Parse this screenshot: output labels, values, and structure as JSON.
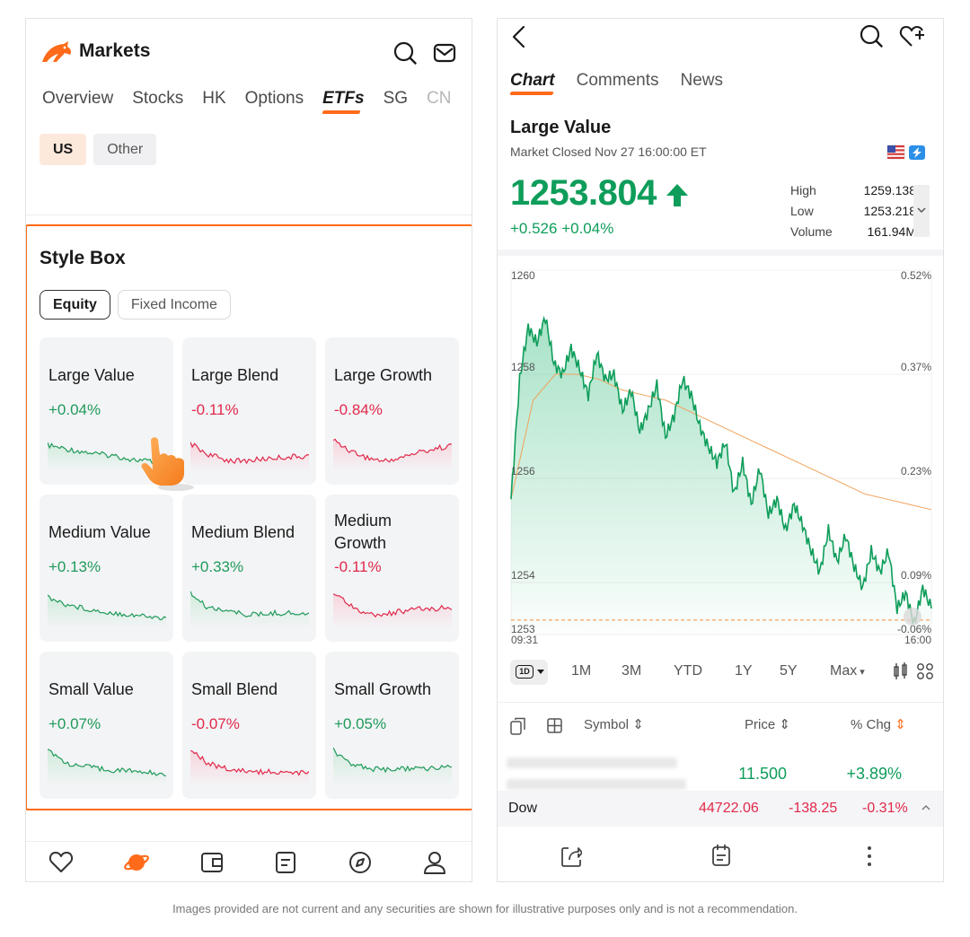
{
  "left": {
    "header": {
      "title": "Markets",
      "icons": [
        "logo-icon",
        "search-icon",
        "mail-icon"
      ]
    },
    "tabs": [
      {
        "label": "Overview",
        "active": false
      },
      {
        "label": "Stocks",
        "active": false
      },
      {
        "label": "HK",
        "active": false
      },
      {
        "label": "Options",
        "active": false
      },
      {
        "label": "ETFs",
        "active": true
      },
      {
        "label": "SG",
        "active": false
      },
      {
        "label": "CN",
        "active": false
      }
    ],
    "region": [
      "US",
      "Other"
    ],
    "style_box": {
      "title": "Style Box",
      "segments": [
        "Equity",
        "Fixed Income"
      ],
      "cells": [
        {
          "name": "Large Value",
          "change": "+0.04%",
          "trend": "pos"
        },
        {
          "name": "Large Blend",
          "change": "-0.11%",
          "trend": "neg"
        },
        {
          "name": "Large Growth",
          "change": "-0.84%",
          "trend": "neg"
        },
        {
          "name": "Medium Value",
          "change": "+0.13%",
          "trend": "pos"
        },
        {
          "name": "Medium Blend",
          "change": "+0.33%",
          "trend": "pos"
        },
        {
          "name": "Medium Growth",
          "change": "-0.11%",
          "trend": "neg"
        },
        {
          "name": "Small Value",
          "change": "+0.07%",
          "trend": "pos"
        },
        {
          "name": "Small Blend",
          "change": "-0.07%",
          "trend": "neg"
        },
        {
          "name": "Small Growth",
          "change": "+0.05%",
          "trend": "pos"
        }
      ]
    },
    "nav_icons": [
      "heart-icon",
      "planet-icon",
      "wallet-icon",
      "notes-icon",
      "compass-icon",
      "profile-icon"
    ]
  },
  "right": {
    "tabs": [
      {
        "label": "Chart",
        "active": true
      },
      {
        "label": "Comments",
        "active": false
      },
      {
        "label": "News",
        "active": false
      }
    ],
    "name": "Large Value",
    "status": "Market Closed Nov 27 16:00:00 ET",
    "price": "1253.804",
    "change": "+0.526 +0.04%",
    "stats": [
      {
        "label": "High",
        "value": "1259.138"
      },
      {
        "label": "Low",
        "value": "1253.218"
      },
      {
        "label": "Volume",
        "value": "161.94M"
      }
    ],
    "chart_data": {
      "type": "line",
      "y_left_ticks": [
        "1260",
        "1258",
        "1256",
        "1254",
        "1253"
      ],
      "y_right_ticks": [
        "0.52%",
        "0.37%",
        "0.23%",
        "0.09%",
        "-0.06%"
      ],
      "x_ticks": [
        "09:31",
        "16:00"
      ],
      "ylim": [
        1253,
        1260
      ],
      "prev_close": 1253.278,
      "price_series": [
        1255.6,
        1257.9,
        1258.9,
        1258.6,
        1259.1,
        1258.2,
        1258.0,
        1258.5,
        1258.1,
        1257.6,
        1258.4,
        1257.9,
        1258.0,
        1257.3,
        1257.7,
        1256.9,
        1257.3,
        1257.8,
        1256.8,
        1257.2,
        1257.9,
        1257.6,
        1257.0,
        1256.6,
        1256.3,
        1256.7,
        1255.7,
        1256.3,
        1255.5,
        1256.2,
        1255.3,
        1255.6,
        1255.0,
        1255.5,
        1255.1,
        1254.6,
        1254.2,
        1255.0,
        1254.4,
        1254.9,
        1254.3,
        1253.9,
        1254.6,
        1254.2,
        1254.6,
        1253.5,
        1253.8,
        1253.2,
        1253.9,
        1253.5
      ],
      "avg_series": [
        1255.6,
        1257.5,
        1258.0,
        1258.0,
        1257.9,
        1257.7,
        1257.6,
        1257.5,
        1257.3,
        1257.1,
        1256.9,
        1256.7,
        1256.5,
        1256.3,
        1256.1,
        1255.9,
        1255.7,
        1255.6,
        1255.5,
        1255.4
      ],
      "line_color": "#0e9d5a",
      "avg_color": "#f0a25a"
    },
    "timeframes": [
      "1D",
      "1M",
      "3M",
      "YTD",
      "1Y",
      "5Y",
      "Max"
    ],
    "table": {
      "headers": [
        "Symbol",
        "Price",
        "% Chg"
      ],
      "row": {
        "price": "11.500",
        "change": "+3.89%"
      }
    },
    "ticker": {
      "name": "Dow",
      "value": "44722.06",
      "change": "-138.25",
      "pct": "-0.31%"
    }
  },
  "disclaimer": "Images provided are not current and any securities are shown for illustrative purposes only and is not a recommendation."
}
